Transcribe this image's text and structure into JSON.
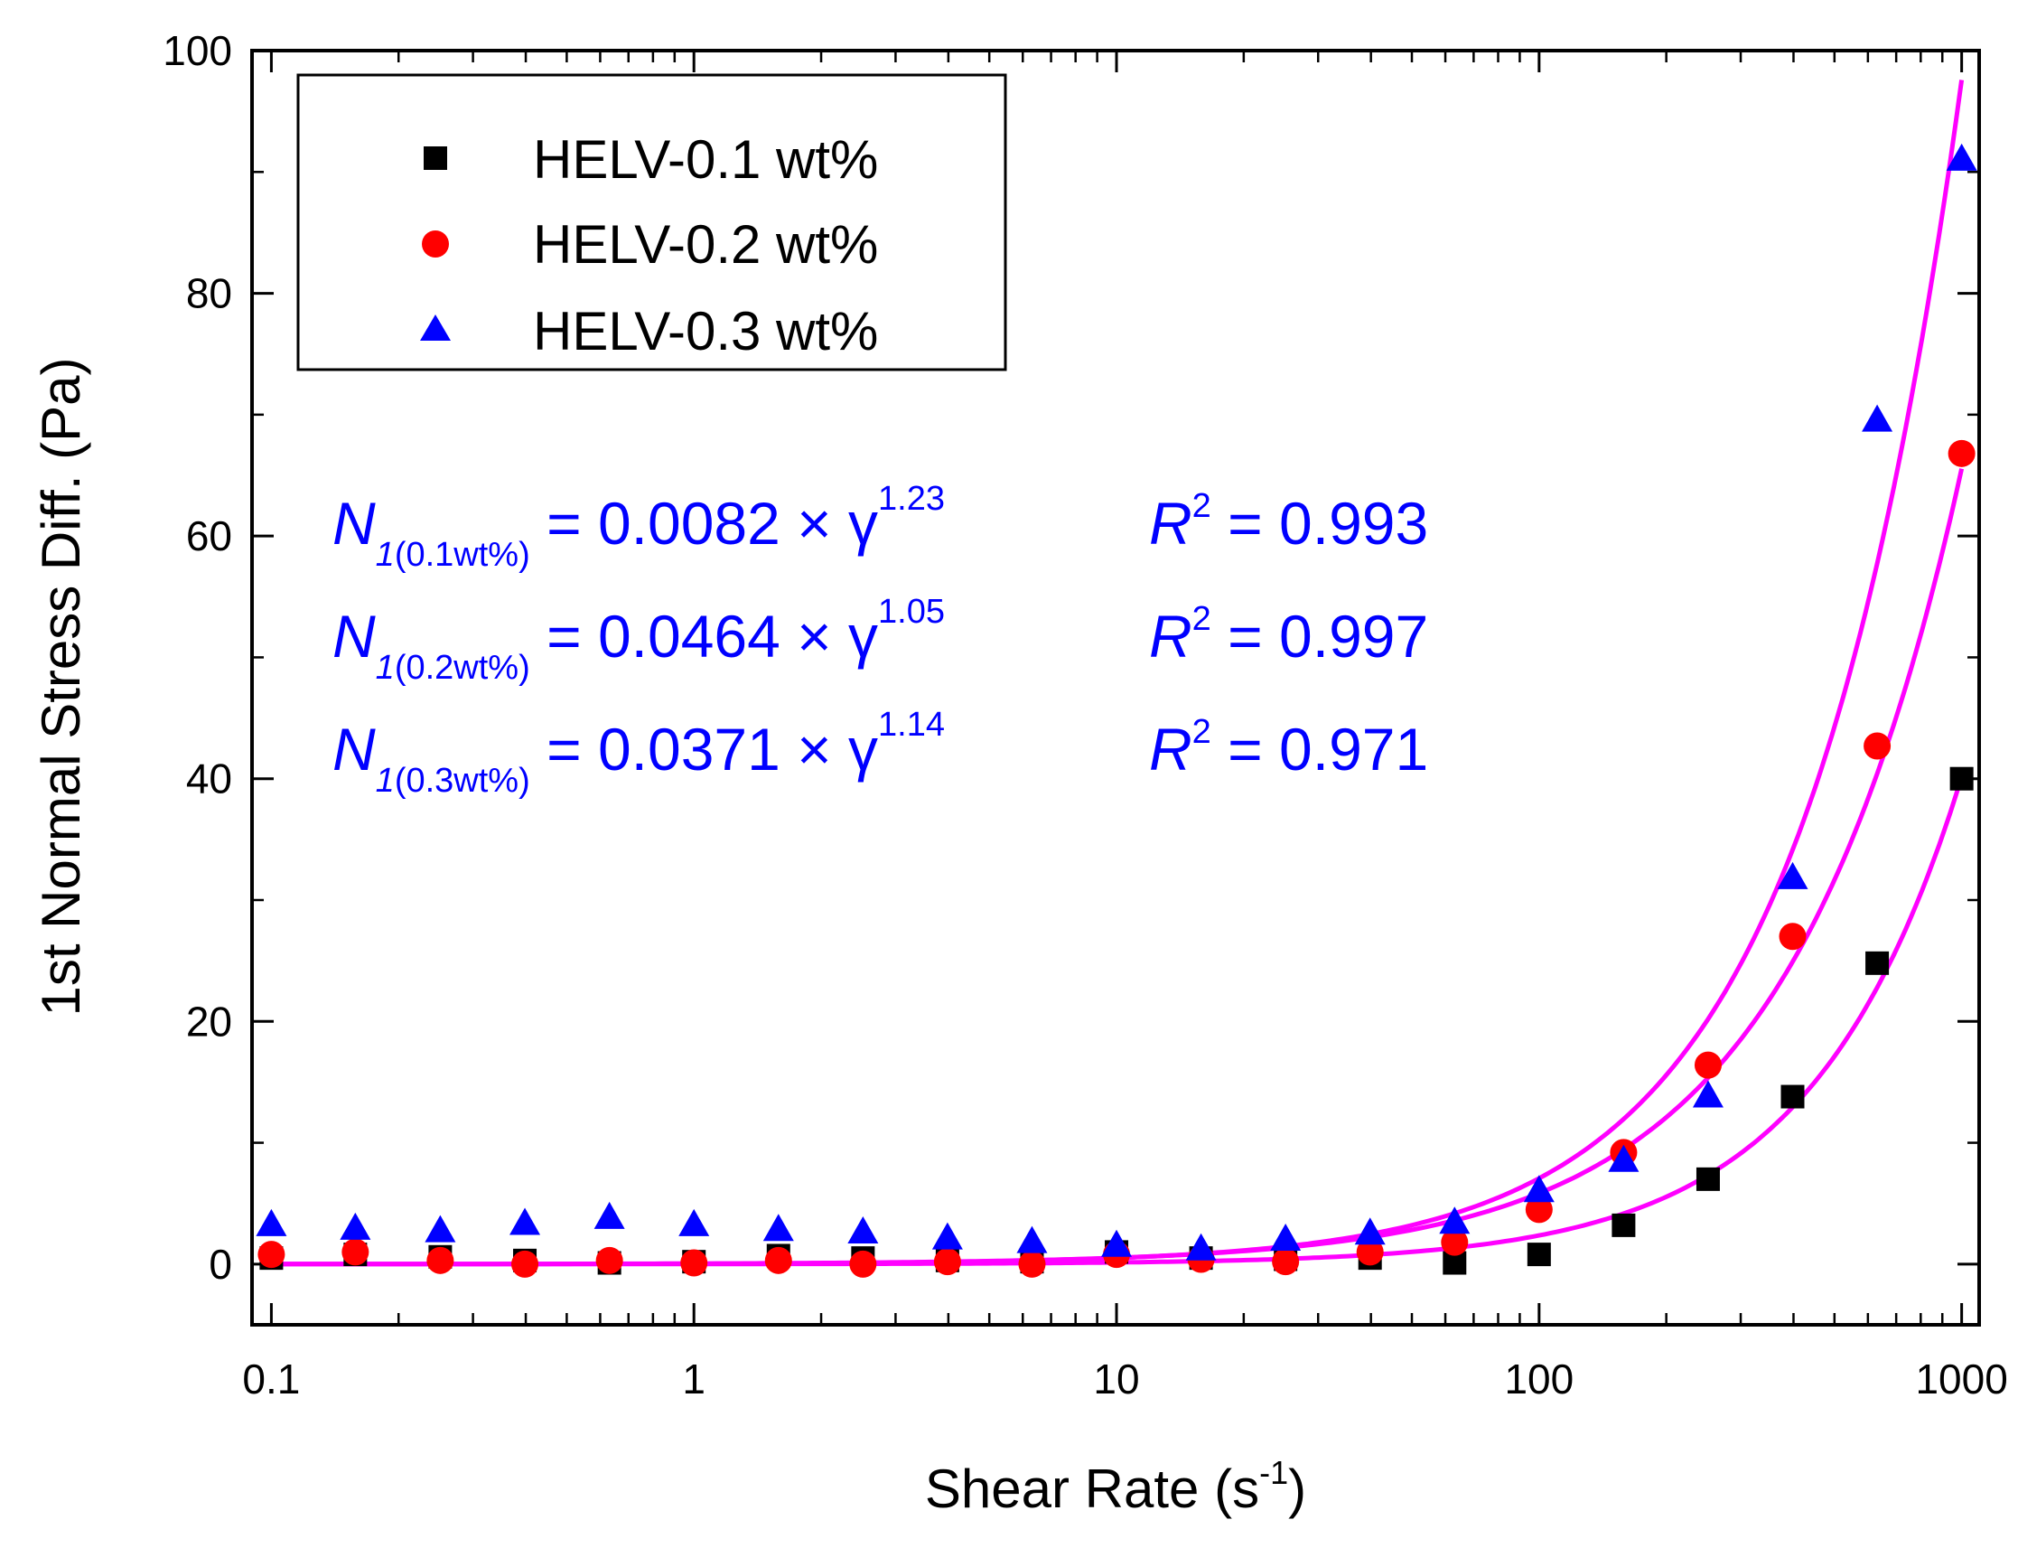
{
  "chart_data": {
    "type": "scatter",
    "xscale": "log",
    "xlim": [
      0.09,
      1100
    ],
    "ylim": [
      -5,
      100
    ],
    "xticks": [
      0.1,
      1,
      10,
      100,
      1000
    ],
    "xtick_labels": [
      "0.1",
      "1",
      "10",
      "100",
      "1000"
    ],
    "yticks": [
      0,
      20,
      40,
      60,
      80,
      100
    ],
    "ytick_labels": [
      "0",
      "20",
      "40",
      "60",
      "80",
      "100"
    ],
    "xlabel": "Shear Rate (s",
    "xlabel_sup": "-1",
    "xlabel_close": ")",
    "ylabel": "1st Normal Stress Diff. (Pa)",
    "legend_position": "top-left",
    "series": [
      {
        "name": "HELV-0.1 wt%",
        "marker": "square",
        "color": "#000000",
        "x": [
          0.1,
          0.158,
          0.251,
          0.398,
          0.631,
          1,
          1.585,
          2.512,
          3.981,
          6.31,
          10,
          15.85,
          25.12,
          39.81,
          63.1,
          100,
          158.5,
          251.2,
          398.1,
          631,
          1000
        ],
        "y": [
          0.5,
          0.8,
          0.6,
          0.3,
          0.1,
          0.2,
          0.7,
          0.5,
          0.3,
          0.2,
          1.0,
          0.5,
          0.4,
          0.5,
          0.1,
          0.8,
          3.2,
          7.0,
          13.8,
          24.8,
          40.0
        ]
      },
      {
        "name": "HELV-0.2 wt%",
        "marker": "circle",
        "color": "#ff0000",
        "x": [
          0.1,
          0.158,
          0.251,
          0.398,
          0.631,
          1,
          1.585,
          2.512,
          3.981,
          6.31,
          10,
          15.85,
          25.12,
          39.81,
          63.1,
          100,
          158.5,
          251.2,
          398.1,
          631,
          1000
        ],
        "y": [
          0.8,
          1.0,
          0.3,
          0.0,
          0.3,
          0.1,
          0.3,
          0.0,
          0.2,
          0.0,
          0.8,
          0.4,
          0.2,
          1.0,
          1.8,
          4.5,
          9.2,
          16.4,
          27.0,
          42.7,
          66.8
        ]
      },
      {
        "name": "HELV-0.3 wt%",
        "marker": "triangle",
        "color": "#0000ff",
        "x": [
          0.1,
          0.158,
          0.251,
          0.398,
          0.631,
          1,
          1.585,
          2.512,
          3.981,
          6.31,
          10,
          15.85,
          25.12,
          39.81,
          63.1,
          100,
          158.5,
          251.2,
          398.1,
          631,
          1000
        ],
        "y": [
          3.2,
          2.9,
          2.7,
          3.3,
          3.8,
          3.2,
          2.8,
          2.6,
          2.1,
          1.8,
          1.5,
          1.2,
          2.0,
          2.5,
          3.4,
          6.0,
          8.5,
          13.8,
          31.8,
          69.5,
          91.0
        ]
      }
    ],
    "fits": [
      {
        "name": "fit-0.1wt",
        "a": 0.0082,
        "b": 1.23,
        "color": "#ff00ff"
      },
      {
        "name": "fit-0.2wt",
        "a": 0.0464,
        "b": 1.05,
        "color": "#ff00ff"
      },
      {
        "name": "fit-0.3wt",
        "a": 0.0371,
        "b": 1.14,
        "color": "#ff00ff"
      }
    ],
    "annotations": {
      "equations": [
        {
          "n": "N",
          "sub_num": "1",
          "sub_conc": "(0.1wt%)",
          "body": " = 0.0082 × γ",
          "exp": "1.23",
          "r": "R",
          "r_exp": "2",
          "r_val": " = 0.993"
        },
        {
          "n": "N",
          "sub_num": "1",
          "sub_conc": "(0.2wt%)",
          "body": " = 0.0464 × γ",
          "exp": "1.05",
          "r": "R",
          "r_exp": "2",
          "r_val": " = 0.997"
        },
        {
          "n": "N",
          "sub_num": "1",
          "sub_conc": "(0.3wt%)",
          "body": " = 0.0371 × γ",
          "exp": "1.14",
          "r": "R",
          "r_exp": "2",
          "r_val": " = 0.971"
        }
      ]
    }
  }
}
